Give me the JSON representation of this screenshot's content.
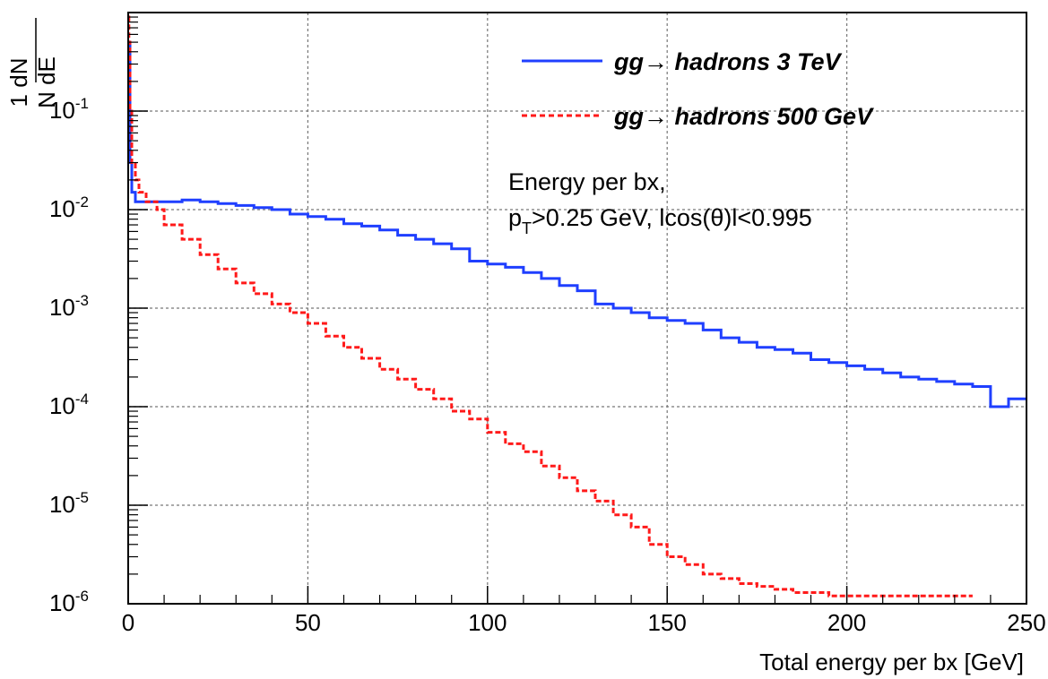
{
  "chart_data": {
    "type": "line",
    "xlabel": "Total energy per bx [GeV]",
    "ylabel": {
      "num": "1 dN",
      "den": "N dE"
    },
    "xlim": [
      0,
      250
    ],
    "ylim": [
      1e-06,
      1
    ],
    "yscale": "log",
    "grid": true,
    "x_ticks": [
      "0",
      "50",
      "100",
      "150",
      "200",
      "250"
    ],
    "y_ticks": [
      {
        "value": 1e-06,
        "base": "10",
        "exp": "-6"
      },
      {
        "value": 1e-05,
        "base": "10",
        "exp": "-5"
      },
      {
        "value": 0.0001,
        "base": "10",
        "exp": "-4"
      },
      {
        "value": 0.001,
        "base": "10",
        "exp": "-3"
      },
      {
        "value": 0.01,
        "base": "10",
        "exp": "-2"
      },
      {
        "value": 0.1,
        "base": "10",
        "exp": "-1"
      }
    ],
    "legend_position": "top-right",
    "series": [
      {
        "name": "gg→ hadrons 3 TeV",
        "color": "#1f3fff",
        "style": "solid",
        "x": [
          0.5,
          1,
          2,
          5,
          10,
          15,
          20,
          25,
          30,
          35,
          40,
          45,
          50,
          55,
          60,
          65,
          70,
          75,
          80,
          85,
          90,
          95,
          100,
          105,
          110,
          115,
          120,
          125,
          130,
          135,
          140,
          145,
          150,
          155,
          160,
          165,
          170,
          175,
          180,
          185,
          190,
          195,
          200,
          205,
          210,
          215,
          220,
          225,
          230,
          235,
          240,
          245,
          250
        ],
        "y": [
          0.5,
          0.03,
          0.015,
          0.012,
          0.012,
          0.012,
          0.0125,
          0.012,
          0.0115,
          0.011,
          0.0105,
          0.01,
          0.009,
          0.0085,
          0.008,
          0.0072,
          0.0068,
          0.0062,
          0.0055,
          0.005,
          0.0045,
          0.004,
          0.003,
          0.0028,
          0.0026,
          0.0023,
          0.002,
          0.0017,
          0.0015,
          0.0011,
          0.001,
          0.0009,
          0.0008,
          0.00075,
          0.0007,
          0.0006,
          0.0005,
          0.00045,
          0.0004,
          0.00038,
          0.00035,
          0.0003,
          0.00028,
          0.00026,
          0.00024,
          0.00022,
          0.0002,
          0.00019,
          0.00018,
          0.00017,
          0.00016,
          0.0001,
          0.00012
        ]
      },
      {
        "name": "gg→ hadrons 500 GeV",
        "color": "#ff1a1a",
        "style": "dashed",
        "x": [
          0.2,
          0.5,
          1,
          2,
          3,
          5,
          8,
          10,
          15,
          20,
          25,
          30,
          35,
          40,
          45,
          50,
          55,
          60,
          65,
          70,
          75,
          80,
          85,
          90,
          95,
          100,
          105,
          110,
          115,
          120,
          125,
          130,
          135,
          140,
          145,
          150,
          155,
          160,
          165,
          170,
          175,
          180,
          185,
          190,
          195,
          200,
          205,
          210,
          230,
          235
        ],
        "y": [
          0.9,
          0.5,
          0.1,
          0.03,
          0.02,
          0.015,
          0.012,
          0.01,
          0.007,
          0.005,
          0.0035,
          0.0025,
          0.0018,
          0.0014,
          0.0011,
          0.0009,
          0.0007,
          0.00052,
          0.0004,
          0.00031,
          0.00024,
          0.00019,
          0.00015,
          0.00012,
          9e-05,
          7.5e-05,
          5.5e-05,
          4.2e-05,
          3.5e-05,
          2.5e-05,
          1.9e-05,
          1.4e-05,
          1.1e-05,
          8e-06,
          6e-06,
          4e-06,
          3e-06,
          2.5e-06,
          2e-06,
          1.8e-06,
          1.6e-06,
          1.5e-06,
          1.4e-06,
          1.3e-06,
          1.3e-06,
          1.2e-06,
          1.2e-06,
          1.2e-06,
          1.2e-06,
          1.2e-06
        ]
      }
    ],
    "annotation": {
      "line1": "Energy per bx,",
      "line2_p": "p",
      "line2_sub": "T",
      "line2_rest": ">0.25 GeV, lcos(θ)l<0.995"
    }
  }
}
